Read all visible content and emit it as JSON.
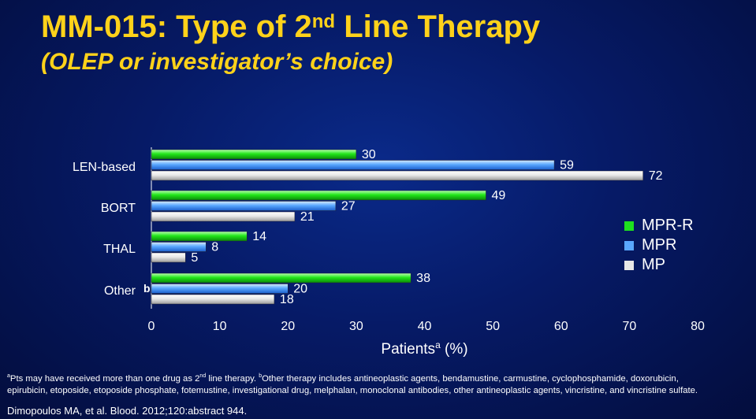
{
  "header": {
    "title_main": "MM-015: Type of 2",
    "title_sup": "nd",
    "title_tail": " Line Therapy",
    "subtitle": "(OLEP or investigator’s choice)"
  },
  "chart_data": {
    "type": "bar",
    "orientation": "horizontal",
    "categories": [
      "LEN-based",
      "BORT",
      "THAL",
      "Other"
    ],
    "category_superscripts": [
      "",
      "",
      "",
      "b"
    ],
    "series": [
      {
        "name": "MPR-R",
        "values": [
          30,
          49,
          14,
          38
        ],
        "color": "#1ee01e"
      },
      {
        "name": "MPR",
        "values": [
          59,
          27,
          8,
          20
        ],
        "color": "#5aa8ff"
      },
      {
        "name": "MP",
        "values": [
          72,
          21,
          5,
          18
        ],
        "color": "#e8e8e8"
      }
    ],
    "xticks": [
      0,
      10,
      20,
      30,
      40,
      50,
      60,
      70,
      80
    ],
    "xlim": [
      0,
      80
    ],
    "xlabel": "Patients",
    "xlabel_sup": "a",
    "xlabel_unit": " (%)",
    "legend_position": "right",
    "grid": false
  },
  "footnotes": {
    "a_sup": "a",
    "a_text": "Pts may have received more than one drug as 2",
    "a_nd": "nd",
    "a_tail": " line therapy. ",
    "b_sup": "b",
    "b_text": "Other therapy includes antineoplastic agents, bendamustine, carmustine, cyclophosphamide, doxorubicin,",
    "line2": "epirubicin, etoposide, etoposide phosphate, fotemustine, investigational drug, melphalan, monoclonal antibodies, other antineoplastic agents, vincristine, and vincristine sulfate."
  },
  "citation": "Dimopoulos MA, et al. Blood. 2012;120:abstract 944."
}
